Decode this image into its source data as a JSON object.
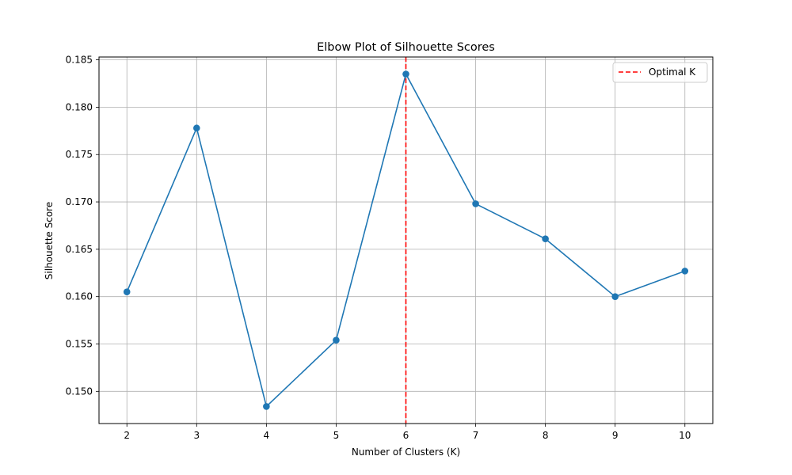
{
  "chart_data": {
    "type": "line",
    "title": "Elbow Plot of Silhouette Scores",
    "xlabel": "Number of Clusters (K)",
    "ylabel": "Silhouette Score",
    "x": [
      2,
      3,
      4,
      5,
      6,
      7,
      8,
      9,
      10
    ],
    "xticks": [
      "2",
      "3",
      "4",
      "5",
      "6",
      "7",
      "8",
      "9",
      "10"
    ],
    "yticks": [
      "0.150",
      "0.155",
      "0.160",
      "0.165",
      "0.170",
      "0.175",
      "0.180",
      "0.185"
    ],
    "xlim": [
      1.6,
      10.4
    ],
    "ylim": [
      0.1466,
      0.1853
    ],
    "grid": true,
    "series": [
      {
        "values": [
          0.1605,
          0.1778,
          0.1484,
          0.1554,
          0.1835,
          0.1698,
          0.1661,
          0.16,
          0.1627
        ],
        "color": "#1f77b4",
        "marker": "circle"
      }
    ],
    "reference_lines": [
      {
        "orientation": "vertical",
        "x": 6,
        "label": "Optimal K",
        "color": "#ff0000",
        "style": "dashed"
      }
    ],
    "legend": {
      "position": "top-right",
      "entries": [
        "Optimal K"
      ]
    }
  }
}
